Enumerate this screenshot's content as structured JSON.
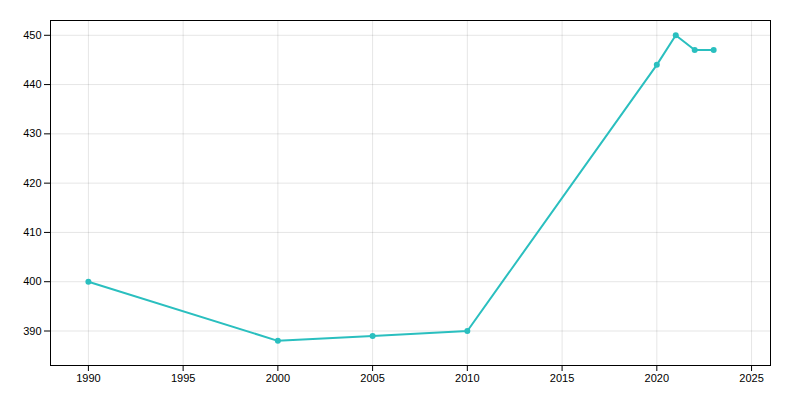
{
  "chart_data": {
    "type": "line",
    "x": [
      1990,
      2000,
      2005,
      2010,
      2020,
      2021,
      2022,
      2023
    ],
    "values": [
      400,
      388,
      389,
      390,
      444,
      450,
      447,
      447
    ],
    "color": "#2ABFBF",
    "marker": "o",
    "xlim": [
      1988,
      2026
    ],
    "ylim": [
      383,
      453
    ],
    "xticks": [
      1990,
      1995,
      2000,
      2005,
      2010,
      2015,
      2020,
      2025
    ],
    "yticks": [
      390,
      400,
      410,
      420,
      430,
      440,
      450
    ],
    "grid": true
  }
}
